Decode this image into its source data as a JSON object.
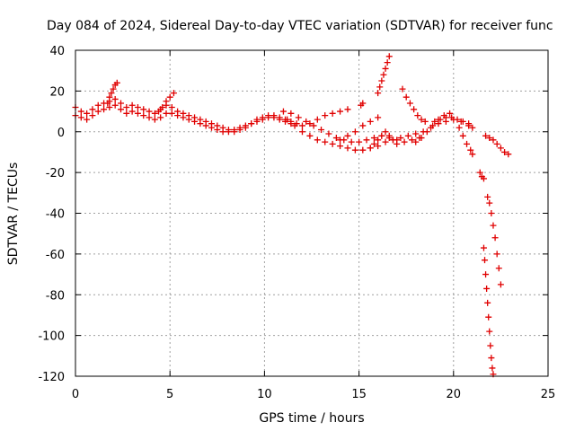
{
  "chart_data": {
    "type": "scatter",
    "title": "Day 084 of 2024, Sidereal Day-to-day VTEC variation (SDTVAR) for receiver func",
    "xlabel": "GPS time / hours",
    "ylabel": "SDTVAR / TECUs",
    "xlim": [
      0,
      25
    ],
    "ylim": [
      -120,
      40
    ],
    "xticks": [
      0,
      5,
      10,
      15,
      20,
      25
    ],
    "yticks": [
      40,
      20,
      0,
      -20,
      -40,
      -60,
      -80,
      -100,
      -120
    ],
    "grid": true,
    "marker": "+",
    "color": "#e00000",
    "series": [
      {
        "name": "main-band-a",
        "x": [
          0,
          0.3,
          0.6,
          0.9,
          1.2,
          1.5,
          1.8,
          2.1,
          2.4,
          2.7,
          3.0,
          3.3,
          3.6,
          3.9,
          4.2,
          4.5,
          4.8,
          5.1,
          5.4,
          5.7,
          6.0,
          6.3,
          6.6,
          6.9,
          7.2,
          7.5,
          7.8,
          8.1,
          8.4,
          8.7,
          9.0,
          9.3,
          9.6,
          9.9,
          10.2,
          10.5,
          10.8,
          11.1,
          11.4,
          11.7,
          12.0
        ],
        "y": [
          12,
          10,
          9,
          11,
          13,
          14,
          15,
          16,
          14,
          12,
          13,
          12,
          11,
          10,
          9,
          11,
          13,
          12,
          10,
          9,
          8,
          7,
          6,
          5,
          4,
          3,
          2,
          1,
          0,
          1,
          2,
          4,
          6,
          7,
          8,
          8,
          7,
          6,
          5,
          4,
          3
        ]
      },
      {
        "name": "main-band-b",
        "x": [
          0,
          0.3,
          0.6,
          0.9,
          1.2,
          1.5,
          1.8,
          2.1,
          2.4,
          2.7,
          3.0,
          3.3,
          3.6,
          3.9,
          4.2,
          4.5,
          4.8,
          5.1,
          5.4,
          5.7,
          6.0,
          6.3,
          6.6,
          6.9,
          7.2,
          7.5,
          7.8,
          8.1,
          8.4,
          8.7,
          9.0,
          9.3,
          9.6,
          9.9,
          10.2,
          10.5,
          10.8,
          11.1,
          11.4
        ],
        "y": [
          8,
          7,
          6,
          8,
          10,
          11,
          12,
          13,
          11,
          9,
          10,
          9,
          8,
          7,
          6,
          7,
          9,
          9,
          8,
          7,
          6,
          5,
          4,
          3,
          2,
          1,
          0,
          0,
          1,
          2,
          3,
          4,
          5,
          6,
          7,
          7,
          6,
          5,
          4
        ]
      },
      {
        "name": "peak-2h",
        "x": [
          1.7,
          1.8,
          1.9,
          2.0,
          2.1,
          2.2
        ],
        "y": [
          14,
          17,
          19,
          21,
          23,
          24
        ]
      },
      {
        "name": "arc-5h",
        "x": [
          4.4,
          4.6,
          4.8,
          5.0,
          5.2
        ],
        "y": [
          10,
          12,
          15,
          17,
          19
        ]
      },
      {
        "name": "arc-12-15",
        "x": [
          11.2,
          11.6,
          12.0,
          12.4,
          12.8,
          13.2,
          13.6,
          14.0,
          14.4,
          14.8,
          15.2,
          15.6,
          16.0,
          16.4,
          16.8,
          17.2,
          17.6,
          18.0,
          18.4,
          18.8,
          19.2,
          19.6,
          20.0,
          20.4,
          20.8
        ],
        "y": [
          6,
          3,
          0,
          -2,
          -4,
          -5,
          -6,
          -7,
          -8,
          -9,
          -9,
          -8,
          -7,
          -5,
          -4,
          -3,
          -2,
          -1,
          0,
          2,
          4,
          5,
          6,
          5,
          3
        ]
      },
      {
        "name": "arc-11-15b",
        "x": [
          11.0,
          11.4,
          11.8,
          12.2,
          12.6,
          13.0,
          13.4,
          13.8,
          14.2,
          14.6,
          15.0,
          15.4,
          15.8,
          16.2,
          16.6,
          17.0,
          17.4,
          17.8,
          18.2
        ],
        "y": [
          10,
          9,
          7,
          5,
          3,
          1,
          -1,
          -3,
          -4,
          -5,
          -5,
          -4,
          -3,
          -2,
          -3,
          -4,
          -5,
          -4,
          -3
        ]
      },
      {
        "name": "arc-12-14up",
        "x": [
          12.4,
          12.8,
          13.2,
          13.6,
          14.0,
          14.4
        ],
        "y": [
          4,
          6,
          8,
          9,
          10,
          11
        ]
      },
      {
        "name": "arc-14-16",
        "x": [
          14.0,
          14.4,
          14.8,
          15.2,
          15.6,
          16.0
        ],
        "y": [
          -4,
          -2,
          0,
          3,
          5,
          7
        ]
      },
      {
        "name": "arc-16-17",
        "x": [
          15.6,
          15.8,
          16.0,
          16.2,
          16.4,
          16.6,
          16.8,
          17.0
        ],
        "y": [
          -8,
          -6,
          -4,
          -2,
          0,
          -2,
          -4,
          -6
        ]
      },
      {
        "name": "dot-15h",
        "x": [
          15.1,
          15.2
        ],
        "y": [
          13,
          14
        ]
      },
      {
        "name": "rise-16h",
        "x": [
          16.0,
          16.1,
          16.2,
          16.3,
          16.4,
          16.5,
          16.6
        ],
        "y": [
          19,
          22,
          25,
          28,
          31,
          34,
          37
        ]
      },
      {
        "name": "drop-17h",
        "x": [
          17.3,
          17.5,
          17.7,
          17.9,
          18.1,
          18.3,
          18.5
        ],
        "y": [
          21,
          17,
          14,
          11,
          8,
          6,
          5
        ]
      },
      {
        "name": "arc-18-19",
        "x": [
          18.0,
          18.3,
          18.6,
          18.9,
          19.2,
          19.5,
          19.8
        ],
        "y": [
          -5,
          -3,
          0,
          3,
          6,
          8,
          9
        ]
      },
      {
        "name": "band-19-21",
        "x": [
          19.0,
          19.3,
          19.6,
          19.9,
          20.2,
          20.5,
          20.8,
          21.0
        ],
        "y": [
          5,
          6,
          7,
          7,
          6,
          5,
          4,
          2
        ]
      },
      {
        "name": "drop-20-21",
        "x": [
          20.3,
          20.5,
          20.7,
          20.9,
          21.0
        ],
        "y": [
          2,
          -2,
          -6,
          -9,
          -11
        ]
      },
      {
        "name": "dot-21h",
        "x": [
          21.4,
          21.5,
          21.6
        ],
        "y": [
          -20,
          -22,
          -23
        ]
      },
      {
        "name": "line-22-23",
        "x": [
          21.7,
          21.9,
          22.1,
          22.3,
          22.5,
          22.7,
          22.9
        ],
        "y": [
          -2,
          -3,
          -4,
          -6,
          -8,
          -10,
          -11
        ]
      },
      {
        "name": "dive-22a",
        "x": [
          21.6,
          21.65,
          21.7,
          21.75,
          21.8,
          21.85,
          21.9,
          21.95,
          22.0,
          22.05,
          22.1
        ],
        "y": [
          -57,
          -63,
          -70,
          -77,
          -84,
          -91,
          -98,
          -105,
          -111,
          -116,
          -119
        ]
      },
      {
        "name": "dive-22b",
        "x": [
          21.8,
          21.9,
          22.0,
          22.1,
          22.2,
          22.3,
          22.4,
          22.5
        ],
        "y": [
          -32,
          -35,
          -40,
          -46,
          -52,
          -60,
          -67,
          -75
        ]
      }
    ]
  }
}
